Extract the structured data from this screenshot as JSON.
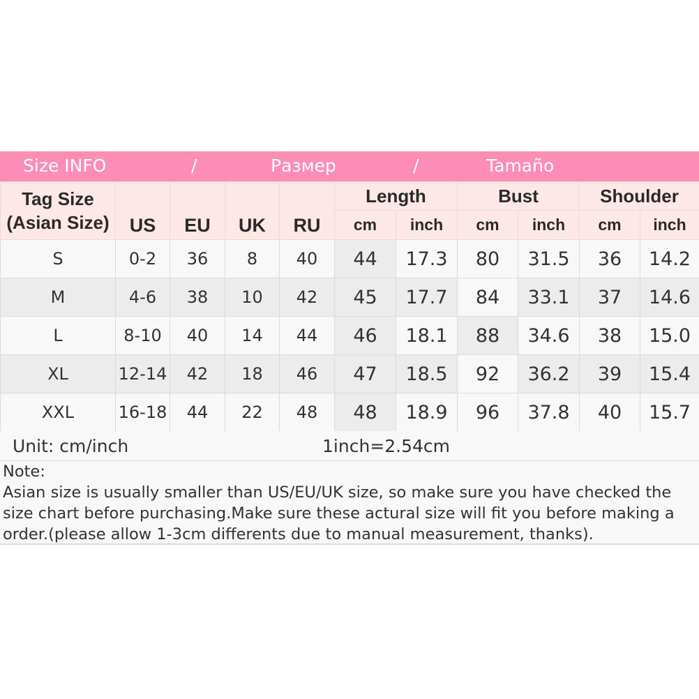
{
  "banner": {
    "parts": [
      "Size INFO",
      "/",
      "Размер",
      "/",
      "Tamaño"
    ],
    "color": "#fe8db5"
  },
  "header": {
    "tag_size": "Tag Size",
    "asian_size": "(Asian Size)",
    "us": "US",
    "eu": "EU",
    "uk": "UK",
    "ru": "RU",
    "groups": [
      "Length",
      "Bust",
      "Shoulder"
    ],
    "units": [
      "cm",
      "inch",
      "cm",
      "inch",
      "cm",
      "inch"
    ]
  },
  "rows": [
    [
      "S",
      "0-2",
      "36",
      "8",
      "40",
      "44",
      "17.3",
      "80",
      "31.5",
      "36",
      "14.2"
    ],
    [
      "M",
      "4-6",
      "38",
      "10",
      "42",
      "45",
      "17.7",
      "84",
      "33.1",
      "37",
      "14.6"
    ],
    [
      "L",
      "8-10",
      "40",
      "14",
      "44",
      "46",
      "18.1",
      "88",
      "34.6",
      "38",
      "15.0"
    ],
    [
      "XL",
      "12-14",
      "42",
      "18",
      "46",
      "47",
      "18.5",
      "92",
      "36.2",
      "39",
      "15.4"
    ],
    [
      "XXL",
      "16-18",
      "44",
      "22",
      "48",
      "48",
      "18.9",
      "96",
      "37.8",
      "40",
      "15.7"
    ]
  ],
  "unit": {
    "label": "Unit: cm/inch",
    "conversion": "1inch=2.54cm"
  },
  "note": {
    "title": "Note:",
    "lines": [
      "Asian size is usually smaller than US/EU/UK size, so make sure you have checked the",
      "size chart before purchasing.Make sure these actural size will fit you before making a",
      "order.(please allow 1-3cm differents due to manual measurement, thanks)."
    ]
  }
}
